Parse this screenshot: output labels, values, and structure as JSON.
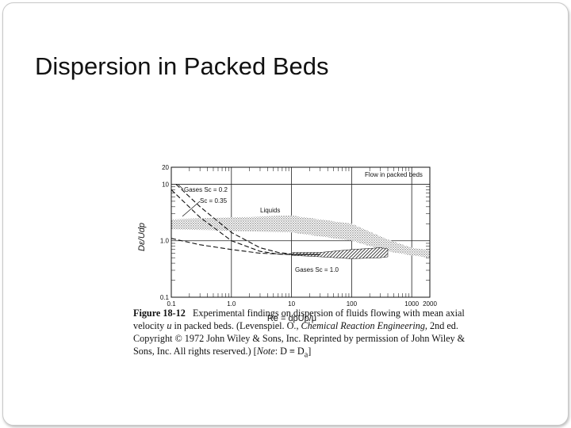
{
  "slide": {
    "title": "Dispersion in Packed Beds"
  },
  "chart_data": {
    "type": "line",
    "xlabel": "Re = dpUp/μ",
    "ylabel": "Dε/Udp",
    "xscale": "log",
    "yscale": "log",
    "xlim": [
      0.1,
      2000
    ],
    "ylim": [
      0.1,
      20
    ],
    "x_ticks": [
      "0.1",
      "1.0",
      "10",
      "100",
      "1000",
      "2000"
    ],
    "y_ticks": [
      "0.1",
      "1.0",
      "10",
      "20"
    ],
    "grid": true,
    "series": [
      {
        "name": "Gases Sc = 0.2",
        "style": "dashed",
        "x": [
          0.12,
          0.3,
          1,
          3,
          6,
          10,
          30
        ],
        "y": [
          10,
          4,
          1.4,
          0.75,
          0.62,
          0.58,
          0.57
        ]
      },
      {
        "name": "Sc = 0.35",
        "style": "dashed",
        "x": [
          0.1,
          0.3,
          1,
          3,
          6,
          10,
          30
        ],
        "y": [
          8,
          2.6,
          1.0,
          0.65,
          0.58,
          0.57,
          0.57
        ]
      },
      {
        "name": "",
        "style": "dashed",
        "x": [
          0.1,
          0.3,
          1,
          3,
          10,
          30
        ],
        "y": [
          1.1,
          0.85,
          0.7,
          0.6,
          0.57,
          0.57
        ]
      }
    ],
    "bands": [
      {
        "name": "Liquids",
        "style": "stippled",
        "x": [
          0.1,
          1,
          10,
          100,
          400,
          1000,
          2000
        ],
        "y_low": [
          1.6,
          1.5,
          1.4,
          1.0,
          0.65,
          0.55,
          0.5
        ],
        "y_high": [
          2.4,
          2.6,
          2.8,
          2.0,
          1.05,
          0.75,
          0.68
        ]
      },
      {
        "name": "Gases Sc = 1.0",
        "style": "hatched",
        "x": [
          10,
          30,
          100,
          300,
          400
        ],
        "y_low": [
          0.55,
          0.52,
          0.48,
          0.5,
          0.52
        ],
        "y_high": [
          0.62,
          0.62,
          0.7,
          0.75,
          0.72
        ]
      }
    ],
    "annotations": [
      "Flow in packed beds"
    ]
  },
  "caption": {
    "label": "Figure 18-12",
    "text_1": "Experimental findings on dispersion of fluids flowing with mean axial velocity ",
    "var_u": "u",
    "text_2": " in packed beds. (Levenspiel. O., ",
    "book": "Chemical Reaction Engineering",
    "text_3": ", 2nd ed. Copyright © 1972 John Wiley & Sons, Inc. Reprinted by permission of John Wiley & Sons, Inc. All rights reserved.) [",
    "note_label": "Note",
    "note_text": ": D ≡ D",
    "note_sub": "a",
    "text_4": "]"
  }
}
